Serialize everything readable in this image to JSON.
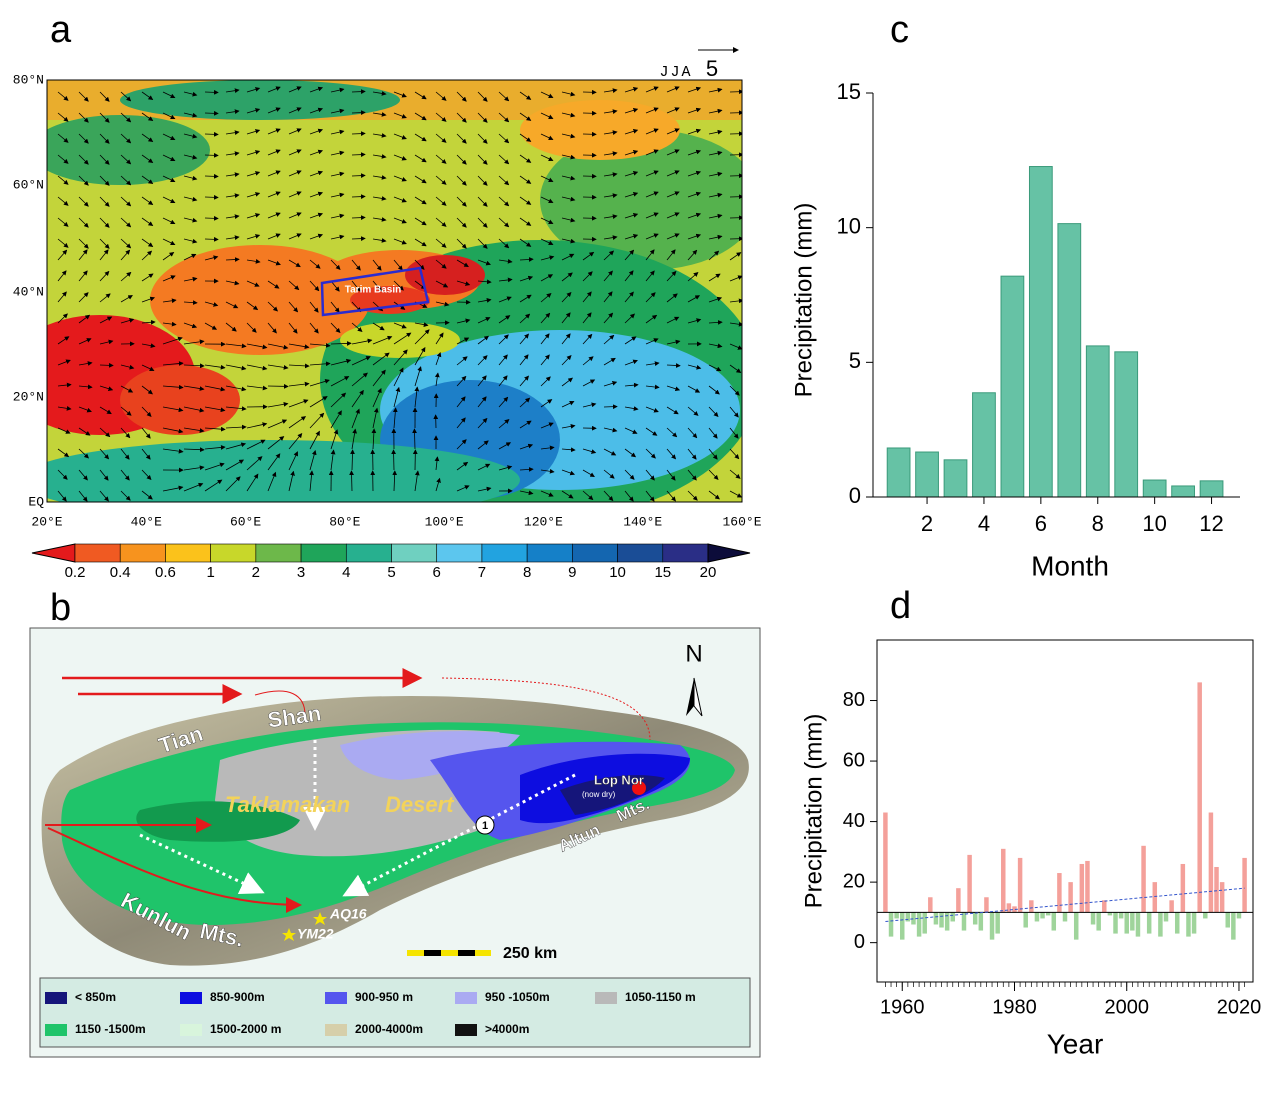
{
  "panel_labels": [
    "a",
    "b",
    "c",
    "d"
  ],
  "map_a": {
    "season": "JJA",
    "vector_scale": "5",
    "lat_labels": [
      "80°N",
      "60°N",
      "40°N",
      "20°N",
      "EQ"
    ],
    "lon_labels": [
      "20°E",
      "40°E",
      "60°E",
      "80°E",
      "100°E",
      "120°E",
      "140°E",
      "160°E"
    ],
    "region_label": "Tarim Basin",
    "colorbar": {
      "labels": [
        "0.2",
        "0.4",
        "0.6",
        "1",
        "2",
        "3",
        "4",
        "5",
        "6",
        "7",
        "8",
        "9",
        "10",
        "15",
        "20"
      ],
      "colors": [
        "#e41a1c",
        "#f05a22",
        "#f7931e",
        "#fbc21b",
        "#c8d72a",
        "#6db84a",
        "#1fa55a",
        "#27b08f",
        "#6fd0c0",
        "#5cc6ee",
        "#22a3e0",
        "#1580c8",
        "#1466b0",
        "#1a4d96",
        "#2a2e86",
        "#0c0c3a"
      ]
    }
  },
  "map_b": {
    "north": "N",
    "place_labels": [
      "Tian",
      "Shan",
      "Taklamakan",
      "Desert",
      "Lop Nor",
      "(now dry)",
      "Altun",
      "Mts.",
      "Kunlun",
      "Mts.",
      "AQ16",
      "YM22",
      "1"
    ],
    "scale_label": "250 km",
    "legend": [
      {
        "label": "< 850m",
        "color": "#15157a"
      },
      {
        "label": "850-900m",
        "color": "#0d0de0"
      },
      {
        "label": "900-950 m",
        "color": "#5555ee"
      },
      {
        "label": "950 -1050m",
        "color": "#aaaaf2"
      },
      {
        "label": "1050-1150 m",
        "color": "#b9b9b9"
      },
      {
        "label": "1150 -1500m",
        "color": "#1fc46a"
      },
      {
        "label": "1500-2000 m",
        "color": "#d8f5dc"
      },
      {
        "label": "2000-4000m",
        "color": "#d6cfaa"
      },
      {
        "label": ">4000m",
        "color": "#111111"
      }
    ]
  },
  "chart_data": [
    {
      "type": "bar",
      "x": [
        1,
        2,
        3,
        4,
        5,
        6,
        7,
        8,
        9,
        10,
        11,
        12
      ],
      "values": [
        1.82,
        1.67,
        1.38,
        3.87,
        8.2,
        12.27,
        10.15,
        5.61,
        5.39,
        0.63,
        0.41,
        0.6
      ],
      "color": "#66c2a5",
      "xlim": [
        0.1,
        13
      ],
      "ylim": [
        0,
        15
      ],
      "xticks": [
        2,
        4,
        6,
        8,
        10,
        12
      ],
      "yticks": [
        0,
        5,
        10,
        15
      ],
      "xlabel": "Month",
      "ylabel": "Precipitation (mm)"
    },
    {
      "type": "anomaly_bar",
      "x": [
        1957,
        1958,
        1959,
        1960,
        1961,
        1962,
        1963,
        1964,
        1965,
        1966,
        1967,
        1968,
        1969,
        1970,
        1971,
        1972,
        1973,
        1974,
        1975,
        1976,
        1977,
        1978,
        1979,
        1980,
        1981,
        1982,
        1983,
        1984,
        1985,
        1986,
        1987,
        1988,
        1989,
        1990,
        1991,
        1992,
        1993,
        1994,
        1995,
        1996,
        1997,
        1998,
        1999,
        2000,
        2001,
        2002,
        2003,
        2004,
        2005,
        2006,
        2007,
        2008,
        2009,
        2010,
        2011,
        2012,
        2013,
        2014,
        2015,
        2016,
        2017,
        2018,
        2019,
        2020,
        2021
      ],
      "values": [
        43,
        2,
        8,
        1,
        7,
        6,
        2,
        3,
        15,
        6,
        5,
        4,
        7,
        18,
        4,
        29,
        6,
        4,
        15,
        1,
        3,
        31,
        13,
        12,
        28,
        5,
        14,
        7,
        8,
        9,
        4,
        23,
        7,
        20,
        1,
        26,
        27,
        6,
        4,
        14,
        9,
        3,
        8,
        3,
        4,
        2,
        32,
        3,
        20,
        2,
        7,
        14,
        3,
        26,
        2,
        3,
        86,
        8,
        43,
        25,
        20,
        5,
        1,
        8,
        28
      ],
      "mean_line": 10,
      "colors": {
        "above": "#f4a09a",
        "below": "#9fd49b"
      },
      "trend_line": {
        "x": [
          1957,
          2021
        ],
        "values": [
          7,
          18
        ],
        "color": "#3355cc"
      },
      "xlim": [
        1955.5,
        2022.5
      ],
      "ylim": [
        -13,
        100
      ],
      "xticks": [
        1960,
        1980,
        2000,
        2020
      ],
      "yticks": [
        0,
        20,
        40,
        60,
        80
      ],
      "xlabel": "Year",
      "ylabel": "Precipitation (mm)"
    }
  ]
}
